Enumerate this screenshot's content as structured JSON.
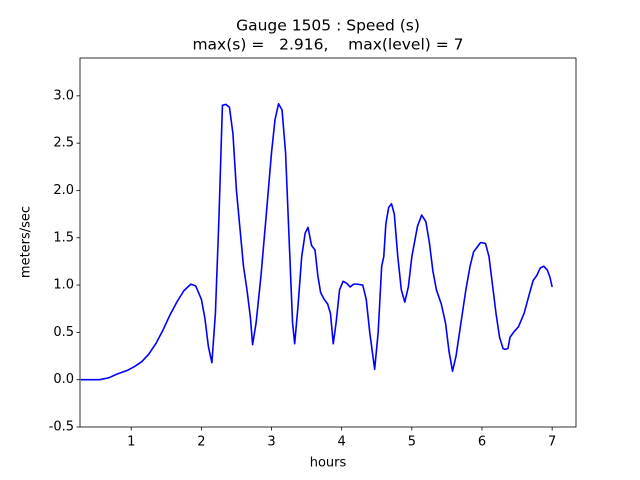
{
  "chart_data": {
    "type": "line",
    "title": [
      "Gauge 1505 : Speed (s)",
      "max(s) =   2.916,    max(level) = 7"
    ],
    "x_label": "hours",
    "y_label": "meters/sec",
    "xlim": [
      0.27,
      7.34
    ],
    "ylim": [
      -0.5,
      3.4
    ],
    "xticks": [
      1,
      2,
      3,
      4,
      5,
      6,
      7
    ],
    "yticks": [
      -0.5,
      {
        "value": 0,
        "label": "0.0"
      },
      0.5,
      {
        "value": 1,
        "label": "1.0"
      },
      1.5,
      {
        "value": 2,
        "label": "2.0"
      },
      2.5,
      {
        "value": 3,
        "label": "3.0"
      }
    ],
    "x": [
      0.28,
      0.4,
      0.55,
      0.68,
      0.8,
      0.95,
      1.05,
      1.15,
      1.25,
      1.35,
      1.45,
      1.55,
      1.65,
      1.75,
      1.85,
      1.92,
      2.0,
      2.05,
      2.1,
      2.15,
      2.2,
      2.25,
      2.3,
      2.35,
      2.4,
      2.45,
      2.5,
      2.55,
      2.6,
      2.65,
      2.7,
      2.73,
      2.78,
      2.85,
      2.92,
      3.0,
      3.05,
      3.1,
      3.15,
      3.2,
      3.25,
      3.3,
      3.33,
      3.38,
      3.43,
      3.48,
      3.52,
      3.57,
      3.62,
      3.66,
      3.7,
      3.75,
      3.8,
      3.84,
      3.88,
      3.92,
      3.97,
      4.02,
      4.07,
      4.12,
      4.17,
      4.22,
      4.3,
      4.35,
      4.4,
      4.47,
      4.52,
      4.57,
      4.6,
      4.63,
      4.67,
      4.71,
      4.75,
      4.8,
      4.85,
      4.9,
      4.95,
      5.0,
      5.08,
      5.14,
      5.2,
      5.25,
      5.3,
      5.35,
      5.42,
      5.48,
      5.53,
      5.58,
      5.63,
      5.7,
      5.77,
      5.83,
      5.88,
      5.93,
      5.98,
      6.05,
      6.1,
      6.15,
      6.2,
      6.25,
      6.3,
      6.33,
      6.37,
      6.4,
      6.45,
      6.52,
      6.6,
      6.68,
      6.73,
      6.78,
      6.83,
      6.88,
      6.93,
      6.97,
      7.0
    ],
    "series": [
      {
        "color": "#0000ff",
        "values": [
          0,
          0,
          0,
          0.02,
          0.06,
          0.1,
          0.14,
          0.19,
          0.27,
          0.38,
          0.52,
          0.68,
          0.82,
          0.94,
          1.01,
          0.99,
          0.85,
          0.65,
          0.35,
          0.18,
          0.7,
          1.7,
          2.9,
          2.91,
          2.88,
          2.6,
          2.0,
          1.6,
          1.2,
          0.95,
          0.65,
          0.37,
          0.6,
          1.1,
          1.7,
          2.4,
          2.75,
          2.916,
          2.85,
          2.4,
          1.5,
          0.6,
          0.38,
          0.8,
          1.3,
          1.55,
          1.61,
          1.42,
          1.37,
          1.1,
          0.92,
          0.85,
          0.8,
          0.7,
          0.38,
          0.6,
          0.95,
          1.04,
          1.02,
          0.98,
          1.01,
          1.01,
          1.0,
          0.85,
          0.5,
          0.11,
          0.5,
          1.2,
          1.3,
          1.65,
          1.82,
          1.86,
          1.75,
          1.3,
          0.95,
          0.82,
          0.98,
          1.3,
          1.62,
          1.74,
          1.67,
          1.45,
          1.15,
          0.95,
          0.8,
          0.6,
          0.3,
          0.09,
          0.25,
          0.6,
          0.95,
          1.2,
          1.35,
          1.4,
          1.45,
          1.44,
          1.3,
          1.0,
          0.7,
          0.45,
          0.33,
          0.32,
          0.33,
          0.45,
          0.5,
          0.56,
          0.7,
          0.92,
          1.05,
          1.1,
          1.18,
          1.2,
          1.16,
          1.08,
          0.98
        ]
      }
    ]
  }
}
